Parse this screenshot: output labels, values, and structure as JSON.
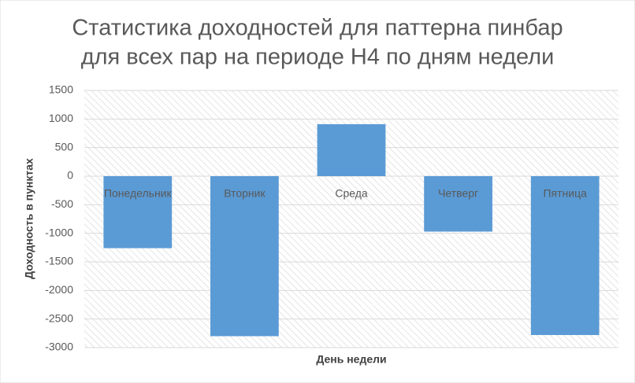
{
  "chart_data": {
    "type": "bar",
    "title": [
      "Статистика доходностей для паттерна пинбар",
      "для всех пар на периоде H4 по дням недели"
    ],
    "x_label": "День недели",
    "y_label": "Доходность в пунктах",
    "categories": [
      "Понедельник",
      "Вторник",
      "Среда",
      "Четверг",
      "Пятница"
    ],
    "values": [
      -1260,
      -2800,
      910,
      -970,
      -2780
    ],
    "color": "#5b9bd5",
    "ylim": [
      -3000,
      1500
    ],
    "yticks": [
      -3000,
      -2500,
      -2000,
      -1500,
      -1000,
      -500,
      0,
      500,
      1000,
      1500
    ],
    "grid": true
  }
}
